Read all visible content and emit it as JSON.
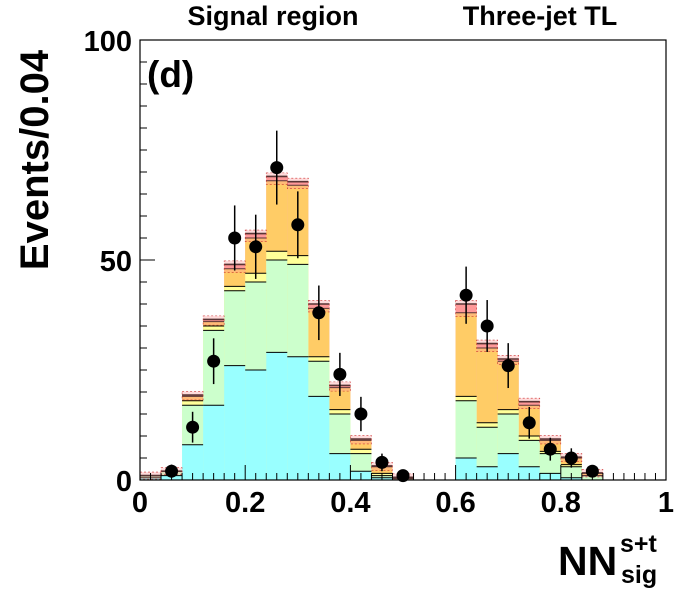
{
  "chart_data": {
    "type": "bar",
    "panel_label": "(d)",
    "title_left": "Signal region",
    "title_right": "Three-jet TL",
    "ylabel": "Events/0.04",
    "xlabel_main": "NN",
    "xlabel_sup": "s+t",
    "xlabel_sub": "sig",
    "xlim": [
      0,
      1
    ],
    "ylim": [
      0,
      100
    ],
    "xticks": [
      {
        "v": 0,
        "label": "0"
      },
      {
        "v": 0.2,
        "label": "0.2"
      },
      {
        "v": 0.4,
        "label": "0.4"
      },
      {
        "v": 0.6,
        "label": "0.6"
      },
      {
        "v": 0.8,
        "label": "0.8"
      },
      {
        "v": 1,
        "label": "1"
      }
    ],
    "yticks": [
      {
        "v": 0,
        "label": "0"
      },
      {
        "v": 50,
        "label": "50"
      },
      {
        "v": 100,
        "label": "100"
      }
    ],
    "bin_width": 0.04,
    "bin_edges": [
      0,
      0.04,
      0.08,
      0.12,
      0.16,
      0.2,
      0.24,
      0.28,
      0.32,
      0.36,
      0.4,
      0.44,
      0.48,
      0.52,
      0.56,
      0.6,
      0.64,
      0.68,
      0.72,
      0.76,
      0.8,
      0.84,
      0.88,
      0.92,
      0.96,
      1.0
    ],
    "series": [
      {
        "name": "background-cyan",
        "color": "#99ffff",
        "values": [
          0.5,
          1,
          8,
          17,
          26,
          25,
          29,
          28,
          19,
          6,
          2,
          0.5,
          0,
          0,
          0,
          5,
          3,
          6,
          3,
          1.5,
          0.5,
          0,
          0,
          0,
          0
        ]
      },
      {
        "name": "background-green",
        "color": "#ccffcc",
        "values": [
          1,
          2,
          17,
          34,
          43,
          45,
          50,
          49,
          27,
          15,
          6,
          1,
          0.3,
          0,
          0,
          18,
          12,
          15,
          9,
          6,
          3,
          1,
          0,
          0,
          0
        ]
      },
      {
        "name": "background-yellow",
        "color": "#ffff99",
        "values": [
          1,
          2,
          18,
          35,
          44,
          47,
          52,
          51,
          28,
          16,
          7,
          1.5,
          0.3,
          0,
          0,
          19,
          13,
          16,
          10,
          6.5,
          3.5,
          1,
          0,
          0,
          0
        ]
      },
      {
        "name": "background-orange",
        "color": "#ffcc66",
        "values": [
          1,
          2,
          19,
          36,
          48,
          55,
          68,
          67,
          39,
          21,
          9,
          3,
          0.5,
          0,
          0,
          38,
          30,
          27,
          17,
          9,
          5,
          1.5,
          0,
          0,
          0
        ]
      },
      {
        "name": "background-pink",
        "color": "#ff9999",
        "values": [
          1,
          2,
          19.3,
          36.5,
          49,
          56,
          69,
          67.8,
          40,
          21.5,
          9.3,
          3.2,
          0.6,
          0,
          0,
          40,
          31,
          27.5,
          17.8,
          9.3,
          5.2,
          1.6,
          0,
          0,
          0
        ]
      }
    ],
    "points": [
      {
        "x": 0.06,
        "y": 2,
        "err": 1.5
      },
      {
        "x": 0.1,
        "y": 12,
        "err": 3.5
      },
      {
        "x": 0.14,
        "y": 27,
        "err": 5.2
      },
      {
        "x": 0.18,
        "y": 55,
        "err": 7.4
      },
      {
        "x": 0.22,
        "y": 53,
        "err": 7.3
      },
      {
        "x": 0.26,
        "y": 71,
        "err": 8.4
      },
      {
        "x": 0.3,
        "y": 58,
        "err": 7.6
      },
      {
        "x": 0.34,
        "y": 38,
        "err": 6.2
      },
      {
        "x": 0.38,
        "y": 24,
        "err": 4.9
      },
      {
        "x": 0.42,
        "y": 15,
        "err": 3.9
      },
      {
        "x": 0.46,
        "y": 4,
        "err": 2
      },
      {
        "x": 0.5,
        "y": 1,
        "err": 1
      },
      {
        "x": 0.62,
        "y": 42,
        "err": 6.5
      },
      {
        "x": 0.66,
        "y": 35,
        "err": 5.9
      },
      {
        "x": 0.7,
        "y": 26,
        "err": 5.1
      },
      {
        "x": 0.74,
        "y": 13,
        "err": 3.6
      },
      {
        "x": 0.78,
        "y": 7,
        "err": 2.6
      },
      {
        "x": 0.82,
        "y": 5,
        "err": 2.2
      },
      {
        "x": 0.86,
        "y": 2,
        "err": 1.4
      }
    ]
  }
}
